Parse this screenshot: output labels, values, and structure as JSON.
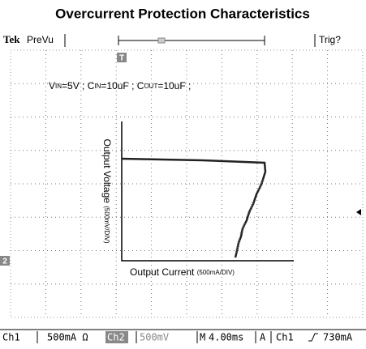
{
  "title": "Overcurrent Protection Characteristics",
  "header": {
    "brand": "Tek",
    "mode": "PreVu",
    "trigger": "Trig?",
    "trigger_marker": "T"
  },
  "conditions": [
    {
      "name": "V",
      "sub": "IN",
      "value": "=5V ;"
    },
    {
      "name": "C",
      "sub": "IN",
      "value": "=10uF ;"
    },
    {
      "name": "C",
      "sub": "OUT",
      "value": "=10uF ;"
    }
  ],
  "y_axis": {
    "label": "Output Voltage",
    "unit": "(500mV/DIV)"
  },
  "x_axis": {
    "label": "Output Current",
    "unit": "(500mA/DIV)"
  },
  "channel_marker": "2",
  "status": [
    "Ch1",
    "500mA Ω",
    "Ch2",
    "500mV",
    "M",
    "4.00ms",
    "A",
    "Ch1",
    "730mA"
  ]
}
